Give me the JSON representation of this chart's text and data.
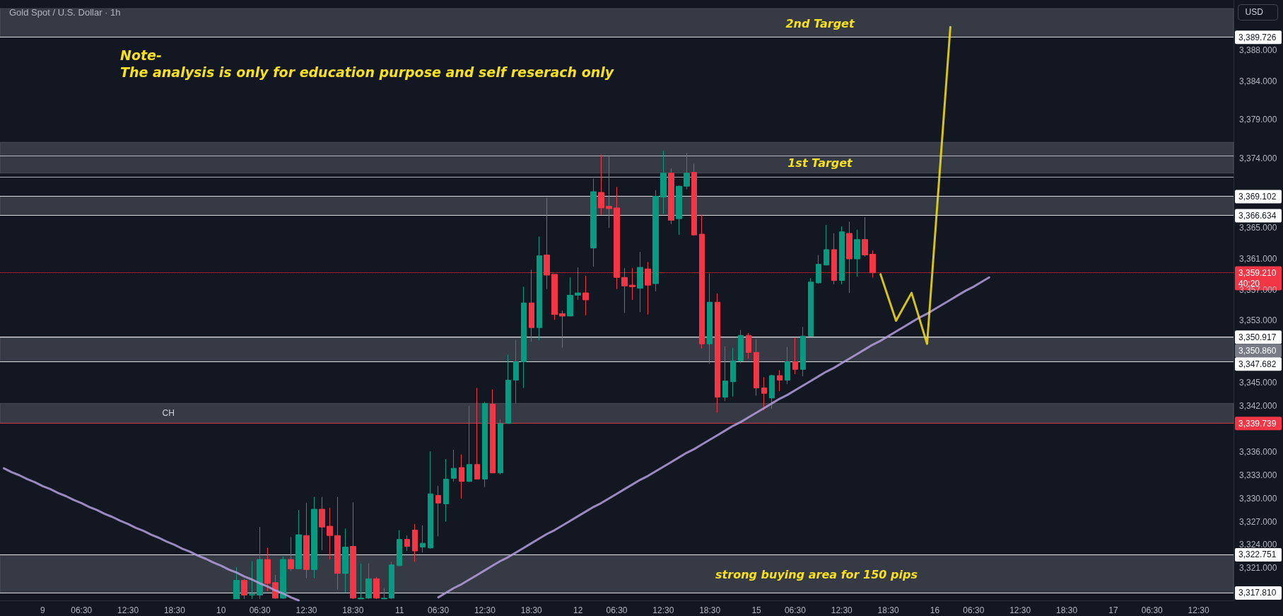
{
  "chart_data": {
    "type": "candlestick",
    "title": "Gold Spot / U.S. Dollar · 1h",
    "ylabel": "USD",
    "annotations": [
      "Note-",
      "The analysis is only for education purpose and self reserach only",
      "2nd Target",
      "1st Target",
      "strong buying area for 150 pips"
    ],
    "categories": [
      null,
      null,
      null,
      null,
      null,
      "9",
      null,
      null,
      null,
      null,
      "06:30",
      null,
      null,
      null,
      null,
      null,
      "12:30",
      null,
      null,
      null,
      null,
      null,
      "18:30",
      null,
      null,
      null,
      null,
      null,
      "10",
      null,
      null,
      null,
      null,
      "06:30",
      null,
      null,
      null,
      null,
      null,
      "12:30",
      null,
      null,
      null,
      null,
      null,
      "18:30",
      null,
      null,
      null,
      null,
      null,
      "11",
      null,
      null,
      null,
      null,
      "06:30",
      null,
      null,
      null,
      null,
      null,
      "12:30",
      null,
      null,
      null,
      null,
      null,
      "18:30",
      null,
      null,
      null,
      null,
      null,
      "12",
      null,
      null,
      null,
      null,
      "06:30",
      null,
      null,
      null,
      null,
      null,
      "12:30",
      null,
      null,
      null,
      null,
      null,
      "18:30",
      null,
      null,
      null,
      null,
      null,
      "15",
      null,
      null,
      null,
      null,
      "06:30",
      null,
      null,
      null,
      null,
      null,
      "12:30",
      null,
      null,
      null,
      null,
      null,
      "18:30",
      null,
      null,
      null,
      null,
      null,
      "16",
      null,
      null,
      null,
      null,
      "06:30",
      null,
      null,
      null,
      null,
      null,
      "12:30",
      null,
      null,
      null,
      null,
      null,
      "18:30",
      null,
      null,
      null,
      null,
      null,
      "17",
      null,
      null,
      null,
      null,
      "06:30",
      null,
      null,
      null,
      null,
      null,
      "12:30",
      null,
      null,
      null,
      null
    ],
    "ohlc": [
      null,
      null,
      null,
      null,
      null,
      null,
      null,
      null,
      null,
      null,
      null,
      null,
      null,
      null,
      null,
      null,
      null,
      null,
      null,
      null,
      null,
      null,
      null,
      null,
      null,
      null,
      null,
      null,
      null,
      null,
      [
        3317,
        3321.1,
        3317,
        3319.4
      ],
      [
        3319.4,
        3319.6,
        3317,
        3317.5
      ],
      [
        3317.5,
        3321.9,
        3317,
        3317.6
      ],
      [
        3317.5,
        3326.3,
        3317,
        3322.1
      ],
      [
        3322.1,
        3323.6,
        3318.0,
        3319.0
      ],
      [
        3319.1,
        3320.1,
        3317,
        3317.1
      ],
      [
        3317.1,
        3322.5,
        3317,
        3322.1
      ],
      [
        3322.1,
        3325.0,
        3320.6,
        3320.9
      ],
      [
        3320.9,
        3328.5,
        3320.9,
        3325.3
      ],
      [
        3325.2,
        3329.4,
        3319.7,
        3320.8
      ],
      [
        3320.8,
        3330.2,
        3319.7,
        3328.6
      ],
      [
        3328.6,
        3330.2,
        3323.3,
        3326.3
      ],
      [
        3326.4,
        3328.8,
        3322.1,
        3325.2
      ],
      [
        3325.2,
        3330.2,
        3318.2,
        3320.3
      ],
      [
        3320.3,
        3326.1,
        3317.8,
        3323.7
      ],
      [
        3323.8,
        3329.5,
        3317,
        3317.1
      ],
      [
        3317,
        3321.6,
        3317,
        3317.1
      ],
      [
        3317.1,
        3321.6,
        3317,
        3319.6
      ],
      [
        3319.6,
        3319.8,
        3317,
        3317.1
      ],
      [
        3317,
        3318.4,
        3317,
        3317.1
      ],
      [
        3317.1,
        3321.8,
        3317,
        3321.4
      ],
      [
        3321.3,
        3325.9,
        3321.3,
        3324.7
      ],
      [
        3324.7,
        3325.2,
        3323.2,
        3323.8
      ],
      [
        3325.9,
        3326.7,
        3321.8,
        3323.2
      ],
      [
        3323.7,
        3326.5,
        3323.0,
        3324.2
      ],
      [
        3323.6,
        3336.1,
        3323.5,
        3330.6
      ],
      [
        3330.4,
        3331.6,
        3325.1,
        3329.4
      ],
      [
        3329.3,
        3335.1,
        3327.0,
        3332.5
      ],
      [
        3332.6,
        3336.3,
        3332.2,
        3333.9
      ],
      [
        3334.0,
        3335.7,
        3330.0,
        3332.2
      ],
      [
        3332.2,
        3342.0,
        3332.2,
        3334.4
      ],
      [
        3334.4,
        3344.3,
        3332.5,
        3332.5
      ],
      [
        3332.5,
        3342.5,
        3331.5,
        3342.3
      ],
      [
        3342.2,
        3344.1,
        3333.3,
        3333.3
      ],
      [
        3333.3,
        3340.2,
        3333.1,
        3339.7
      ],
      [
        3339.7,
        3348.6,
        3339.7,
        3345.3
      ],
      [
        3345.3,
        3350.5,
        3342.3,
        3347.7
      ],
      [
        3347.7,
        3357.4,
        3344.3,
        3355.3
      ],
      [
        3355.3,
        3359.6,
        3350.3,
        3352.1
      ],
      [
        3352.1,
        3363.9,
        3350.5,
        3361.4
      ],
      [
        3361.5,
        3368.9,
        3357.1,
        3358.9
      ],
      [
        3359.0,
        3359.0,
        3353.1,
        3353.8
      ],
      [
        3353.9,
        3354.3,
        3349.5,
        3353.6
      ],
      [
        3353.6,
        3358.6,
        3353.6,
        3356.3
      ],
      [
        3356.3,
        3359.9,
        3355.7,
        3356.6
      ],
      [
        3356.6,
        3358.8,
        3353.7,
        3355.7
      ],
      [
        3362.4,
        3371.4,
        3360.0,
        3369.7
      ],
      [
        3369.6,
        3374.5,
        3366.7,
        3367.6
      ],
      [
        3367.8,
        3374.3,
        3365.0,
        3367.5
      ],
      [
        3367.6,
        3370.3,
        3357.1,
        3358.6
      ],
      [
        3358.6,
        3359.8,
        3354.0,
        3357.5
      ],
      [
        3357.6,
        3359.8,
        3355.7,
        3357.4
      ],
      [
        3357.2,
        3361.9,
        3354.1,
        3359.9
      ],
      [
        3359.7,
        3360.6,
        3353.8,
        3357.6
      ],
      [
        3357.8,
        3369.9,
        3356.8,
        3369.1
      ],
      [
        3369.0,
        3375.0,
        3366.8,
        3372.1
      ],
      [
        3372.1,
        3372.7,
        3365.5,
        3366.0
      ],
      [
        3366.2,
        3370.5,
        3364.1,
        3370.4
      ],
      [
        3370.4,
        3374.7,
        3370.0,
        3372.1
      ],
      [
        3372.2,
        3373.3,
        3364.0,
        3364.1
      ],
      [
        3364.2,
        3366.7,
        3349.4,
        3350.0
      ],
      [
        3350.0,
        3359.1,
        3347.4,
        3355.4
      ],
      [
        3355.4,
        3356.5,
        3341.1,
        3343.1
      ],
      [
        3343.1,
        3349.7,
        3342.6,
        3345.2
      ],
      [
        3345.1,
        3349.5,
        3343.2,
        3347.8
      ],
      [
        3347.8,
        3351.8,
        3347.5,
        3351.1
      ],
      [
        3351.1,
        3351.4,
        3348.1,
        3348.9
      ],
      [
        3348.9,
        3350.6,
        3343.3,
        3344.3
      ],
      [
        3344.3,
        3345.7,
        3341.4,
        3343.6
      ],
      [
        3343.0,
        3346.0,
        3341.6,
        3345.9
      ],
      [
        3345.9,
        3346.6,
        3343.9,
        3345.3
      ],
      [
        3345.3,
        3349.6,
        3344.8,
        3347.7
      ],
      [
        3347.7,
        3350.8,
        3346.1,
        3346.7
      ],
      [
        3346.7,
        3352.2,
        3345.8,
        3351.0
      ],
      [
        3351.0,
        3358.5,
        3351.0,
        3358.0
      ],
      [
        3357.9,
        3361.5,
        3357.8,
        3360.3
      ],
      [
        3360.2,
        3365.4,
        3360.2,
        3362.2
      ],
      [
        3362.2,
        3364.3,
        3357.7,
        3358.2
      ],
      [
        3358.2,
        3365.2,
        3357.7,
        3364.5
      ],
      [
        3364.3,
        3365.8,
        3356.6,
        3361.0
      ],
      [
        3361.0,
        3364.8,
        3358.7,
        3363.5
      ],
      [
        3363.5,
        3366.4,
        3361.3,
        3361.5
      ],
      [
        3361.6,
        3362.1,
        3358.6,
        3359.2
      ],
      null,
      null,
      null,
      null,
      null,
      null,
      null,
      null,
      null,
      null,
      null,
      null,
      null,
      null,
      null,
      null,
      null,
      null,
      null,
      null,
      null,
      null,
      null,
      null,
      null,
      null,
      null,
      null,
      null,
      null,
      null,
      null,
      null,
      null,
      null,
      null,
      null,
      null,
      null,
      null,
      null,
      null,
      null,
      null,
      null,
      null
    ],
    "colors": [
      null,
      null,
      null,
      null,
      null,
      null,
      null,
      null,
      null,
      null,
      null,
      null,
      null,
      null,
      null,
      null,
      null,
      null,
      null,
      null,
      null,
      null,
      null,
      null,
      null,
      null,
      null,
      null,
      null,
      null,
      "#089981",
      "#f23645",
      "#089981",
      "#089981",
      "#f23645",
      "#f23645",
      "#089981",
      "#f23645",
      "#089981",
      "#f23645",
      "#089981",
      "#f23645",
      "#f23645",
      "#f23645",
      "#089981",
      "#f23645",
      "#089981",
      "#089981",
      "#f23645",
      "#089981",
      "#089981",
      "#089981",
      "#f23645",
      "#f23645",
      "#089981",
      "#089981",
      "#f23645",
      "#089981",
      "#089981",
      "#f23645",
      "#089981",
      "#f23645",
      "#089981",
      "#f23645",
      "#089981",
      "#089981",
      "#089981",
      "#089981",
      "#f23645",
      "#089981",
      "#f23645",
      "#f23645",
      "#f23645",
      "#089981",
      "#089981",
      "#f23645",
      "#089981",
      "#f23645",
      "#f23645",
      "#f23645",
      "#f23645",
      "#f23645",
      "#089981",
      "#f23645",
      "#089981",
      "#089981",
      "#f23645",
      "#089981",
      "#089981",
      "#f23645",
      "#f23645",
      "#089981",
      "#f23645",
      "#089981",
      "#089981",
      "#089981",
      "#f23645",
      "#f23645",
      "#f23645",
      "#089981",
      "#f23645",
      "#089981",
      "#f23645",
      "#089981",
      "#089981",
      "#089981",
      "#089981",
      "#f23645",
      "#089981",
      "#f23645",
      "#089981",
      "#f23645",
      "#f23645",
      null,
      null,
      null,
      null,
      null,
      null,
      null,
      null,
      null,
      null,
      null,
      null,
      null,
      null,
      null,
      null,
      null,
      null,
      null,
      null,
      null,
      null,
      null,
      null,
      null,
      null,
      null,
      null,
      null,
      null,
      null,
      null,
      null,
      null,
      null,
      null,
      null,
      null,
      null,
      null,
      null,
      null,
      null,
      null,
      null,
      null
    ],
    "series": [
      {
        "type": "line",
        "color": "#b39ddb",
        "values": [
          3333.9,
          3333.4,
          3333.0,
          3332.5,
          3332.1,
          3331.6,
          3331.2,
          3330.7,
          3330.3,
          3329.8,
          3329.4,
          3328.9,
          3328.5,
          3328.0,
          3327.6,
          3327.1,
          3326.7,
          3326.2,
          3325.8,
          3325.3,
          3324.9,
          3324.4,
          3324.0,
          3323.5,
          3323.1,
          3322.6,
          3322.2,
          3321.7,
          3321.3,
          3320.8,
          3320.4,
          3319.9,
          3319.5,
          3319.0,
          3318.6,
          3318.1,
          3317.7,
          3317.2,
          3316.8,
          null,
          null,
          null,
          null,
          null,
          null,
          null,
          null,
          null,
          null,
          null,
          null,
          null,
          null,
          null,
          null,
          null,
          null,
          null,
          null,
          null,
          null,
          null,
          null,
          null,
          null,
          null,
          null,
          null,
          null,
          null,
          null,
          null,
          null,
          null,
          null,
          null,
          null,
          null,
          null,
          null,
          null,
          null,
          null,
          null,
          null,
          null,
          null,
          null,
          null,
          null,
          null,
          null,
          null,
          null,
          null,
          null,
          null,
          null,
          null,
          null,
          null,
          null,
          null,
          null,
          null,
          null,
          null,
          null,
          null,
          null,
          null,
          null,
          null,
          null,
          null,
          null,
          null,
          null,
          null,
          null,
          null,
          null,
          null,
          null,
          null,
          null,
          null,
          null,
          null,
          null,
          null,
          null,
          null,
          null,
          null,
          null,
          null,
          null,
          null,
          null,
          null,
          null,
          null,
          null,
          null,
          null,
          null,
          null,
          null,
          null,
          null,
          null,
          null,
          null,
          null,
          null,
          null,
          null,
          null
        ]
      },
      {
        "type": "line",
        "color": "#b39ddb",
        "values": [
          null,
          null,
          null,
          null,
          null,
          null,
          null,
          null,
          null,
          null,
          null,
          null,
          null,
          null,
          null,
          null,
          null,
          null,
          null,
          null,
          null,
          null,
          null,
          null,
          null,
          null,
          null,
          null,
          null,
          null,
          null,
          null,
          null,
          null,
          null,
          null,
          null,
          null,
          null,
          null,
          null,
          null,
          null,
          null,
          null,
          null,
          null,
          null,
          null,
          null,
          null,
          null,
          null,
          null,
          null,
          null,
          3317.2,
          3317.8,
          3318.4,
          3318.9,
          3319.5,
          3320.1,
          3320.7,
          3321.3,
          3321.9,
          3322.4,
          3323.0,
          3323.6,
          3324.2,
          3324.8,
          3325.4,
          3325.9,
          3326.5,
          3327.1,
          3327.7,
          3328.3,
          3328.9,
          3329.4,
          3330.0,
          3330.6,
          3331.2,
          3331.8,
          3332.4,
          3332.9,
          3333.5,
          3334.1,
          3334.7,
          3335.3,
          3335.9,
          3336.4,
          3337.0,
          3337.6,
          3338.2,
          3338.8,
          3339.4,
          3339.9,
          3340.5,
          3341.1,
          3341.7,
          3342.3,
          3342.9,
          3343.4,
          3344.0,
          3344.6,
          3345.2,
          3345.8,
          3346.4,
          3346.9,
          3347.5,
          3348.1,
          3348.7,
          3349.3,
          3349.9,
          3350.4,
          3351.0,
          3351.6,
          3352.2,
          3352.8,
          3353.4,
          3353.9,
          3354.5,
          3355.1,
          3355.7,
          3356.3,
          3356.9,
          3357.4,
          3358.0,
          3358.6,
          null,
          null,
          null,
          null,
          null,
          null,
          null,
          null,
          null,
          null,
          null,
          null,
          null,
          null,
          null,
          null,
          null,
          null,
          null,
          null,
          null,
          null,
          null,
          null,
          null,
          null,
          null,
          null,
          null,
          null,
          null
        ]
      },
      {
        "type": "line",
        "color": "#f7e01f",
        "values": [
          null,
          null,
          null,
          null,
          null,
          null,
          null,
          null,
          null,
          null,
          null,
          null,
          null,
          null,
          null,
          null,
          null,
          null,
          null,
          null,
          null,
          null,
          null,
          null,
          null,
          null,
          null,
          null,
          null,
          null,
          null,
          null,
          null,
          null,
          null,
          null,
          null,
          null,
          null,
          null,
          null,
          null,
          null,
          null,
          null,
          null,
          null,
          null,
          null,
          null,
          null,
          null,
          null,
          null,
          null,
          null,
          null,
          null,
          null,
          null,
          null,
          null,
          null,
          null,
          null,
          null,
          null,
          null,
          null,
          null,
          null,
          null,
          null,
          null,
          null,
          null,
          null,
          null,
          null,
          null,
          null,
          null,
          null,
          null,
          null,
          null,
          null,
          null,
          null,
          null,
          null,
          null,
          null,
          null,
          null,
          null,
          null,
          null,
          null,
          null,
          null,
          null,
          null,
          null,
          null,
          null,
          null,
          null,
          null,
          null,
          null,
          null,
          null,
          3359.0,
          3356.0,
          3353.0,
          3354.8,
          3356.6,
          3353.3,
          3350.0,
          3363.7,
          3377.3,
          3391.0,
          null,
          null,
          null,
          null,
          null,
          null,
          null,
          null,
          null,
          null,
          null,
          null,
          null,
          null,
          null,
          null,
          null,
          null,
          null,
          null,
          null,
          null,
          null,
          null,
          null,
          null,
          null,
          null,
          null,
          null,
          null,
          null,
          null,
          null,
          null,
          null
        ]
      }
    ],
    "bands": [
      {
        "axis": "y",
        "from": 3389.726,
        "to": 3393.4,
        "color": "#787b86"
      },
      {
        "axis": "y",
        "from": 3372.1,
        "to": 3376.1,
        "color": "#787b86"
      },
      {
        "axis": "y",
        "from": 3366.634,
        "to": 3369.102,
        "color": "#787b86"
      },
      {
        "axis": "y",
        "from": 3347.682,
        "to": 3350.917,
        "color": "#787b86"
      },
      {
        "axis": "y",
        "from": 3339.739,
        "to": 3342.3,
        "color": "#787b86",
        "label": "CH"
      },
      {
        "axis": "y",
        "from": 3317.81,
        "to": 3322.751,
        "color": "#787b86"
      }
    ],
    "ref_lines": [
      {
        "axis": "y",
        "value": 3389.726,
        "label": "3,389.726",
        "color": "#ffffff"
      },
      {
        "axis": "y",
        "value": 3374.3,
        "label": null,
        "color": "#d1d4dc"
      },
      {
        "axis": "y",
        "value": 3371.6,
        "label": null,
        "color": "#d1d4dc"
      },
      {
        "axis": "y",
        "value": 3369.102,
        "label": "3,369.102",
        "color": "#ffffff"
      },
      {
        "axis": "y",
        "value": 3366.634,
        "label": "3,366.634",
        "color": "#ffffff"
      },
      {
        "axis": "y",
        "value": 3359.21,
        "label": "3,359.210\n40:20",
        "color": "#f23645",
        "line_style": "dotted"
      },
      {
        "axis": "y",
        "value": 3350.917,
        "label": "3,350.917",
        "color": "#ffffff"
      },
      {
        "axis": "y",
        "value": 3350.86,
        "label": "3,350.860",
        "color": "#787b86"
      },
      {
        "axis": "y",
        "value": 3347.682,
        "label": "3,347.682",
        "color": "#ffffff"
      },
      {
        "axis": "y",
        "value": 3339.739,
        "label": "3,339.739",
        "color": "#f23645"
      },
      {
        "axis": "y",
        "value": 3322.751,
        "label": "3,322.751",
        "color": "#ffffff"
      },
      {
        "axis": "y",
        "value": 3317.81,
        "label": "3,317.810",
        "color": "#ffffff"
      }
    ],
    "ylim": [
      3316.8,
      3394.5
    ],
    "yticks": [
      {
        "value": 3321,
        "label": "3,321.000"
      },
      {
        "value": 3324,
        "label": "3,324.000"
      },
      {
        "value": 3327,
        "label": "3,327.000"
      },
      {
        "value": 3330,
        "label": "3,330.000"
      },
      {
        "value": 3333,
        "label": "3,333.000"
      },
      {
        "value": 3336,
        "label": "3,336.000"
      },
      {
        "value": 3342,
        "label": "3,342.000"
      },
      {
        "value": 3345,
        "label": "3,345.000"
      },
      {
        "value": 3353,
        "label": "3,353.000"
      },
      {
        "value": 3357,
        "label": "3,357.000"
      },
      {
        "value": 3361,
        "label": "3,361.000"
      },
      {
        "value": 3365,
        "label": "3,365.000"
      },
      {
        "value": 3374,
        "label": "3,374.000"
      },
      {
        "value": 3379,
        "label": "3,379.000"
      },
      {
        "value": 3384,
        "label": "3,384.000"
      },
      {
        "value": 3388,
        "label": "3,388.000"
      }
    ]
  }
}
